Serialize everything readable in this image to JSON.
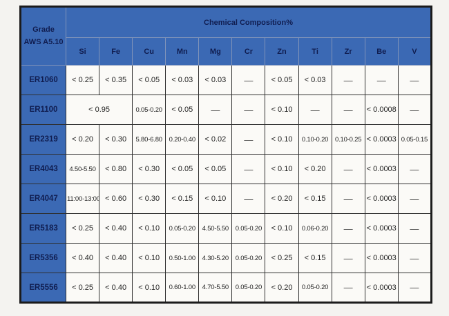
{
  "page": {
    "background_color": "#f4f3f0"
  },
  "colors": {
    "header_blue": "#3b69b4",
    "header_text_navy": "#101d50",
    "grid_line": "#2e2e2e",
    "outer_border": "#1b1b1b",
    "cell_background": "#fbfaf7"
  },
  "table": {
    "grade_header_line1": "Grade",
    "grade_header_line2": "AWS A5.10",
    "composition_header": "Chemical Composition%",
    "elements": [
      "Si",
      "Fe",
      "Cu",
      "Mn",
      "Mg",
      "Cr",
      "Zn",
      "Ti",
      "Zr",
      "Be",
      "V"
    ],
    "empty_marker": "—",
    "rows": [
      {
        "grade": "ER1060",
        "cells": [
          {
            "t": "< 0.25"
          },
          {
            "t": "< 0.35"
          },
          {
            "t": "< 0.05"
          },
          {
            "t": "< 0.03"
          },
          {
            "t": "< 0.03"
          },
          {
            "t": "—"
          },
          {
            "t": "< 0.05"
          },
          {
            "t": "< 0.03"
          },
          {
            "t": "—"
          },
          {
            "t": "—"
          },
          {
            "t": "—"
          }
        ]
      },
      {
        "grade": "ER1100",
        "cells": [
          {
            "t": "< 0.95",
            "span": 2
          },
          {
            "t": "0.05-0.20"
          },
          {
            "t": "< 0.05"
          },
          {
            "t": "—"
          },
          {
            "t": "—"
          },
          {
            "t": "< 0.10"
          },
          {
            "t": "—"
          },
          {
            "t": "—"
          },
          {
            "t": "< 0.0008"
          },
          {
            "t": "—"
          }
        ]
      },
      {
        "grade": "ER2319",
        "cells": [
          {
            "t": "< 0.20"
          },
          {
            "t": "< 0.30"
          },
          {
            "t": "5.80-6.80"
          },
          {
            "t": "0.20-0.40"
          },
          {
            "t": "< 0.02"
          },
          {
            "t": "—"
          },
          {
            "t": "< 0.10"
          },
          {
            "t": "0.10-0.20"
          },
          {
            "t": "0.10-0.25"
          },
          {
            "t": "< 0.0003"
          },
          {
            "t": "0.05-0.15"
          }
        ]
      },
      {
        "grade": "ER4043",
        "cells": [
          {
            "t": "4.50-5.50"
          },
          {
            "t": "< 0.80"
          },
          {
            "t": "< 0.30"
          },
          {
            "t": "< 0.05"
          },
          {
            "t": "< 0.05"
          },
          {
            "t": "—"
          },
          {
            "t": "< 0.10"
          },
          {
            "t": "< 0.20"
          },
          {
            "t": "—"
          },
          {
            "t": "< 0.0003"
          },
          {
            "t": "—"
          }
        ]
      },
      {
        "grade": "ER4047",
        "cells": [
          {
            "t": "11:00-13:00"
          },
          {
            "t": "< 0.60"
          },
          {
            "t": "< 0.30"
          },
          {
            "t": "< 0.15"
          },
          {
            "t": "< 0.10"
          },
          {
            "t": "—"
          },
          {
            "t": "< 0.20"
          },
          {
            "t": "< 0.15"
          },
          {
            "t": "—"
          },
          {
            "t": "< 0.0003"
          },
          {
            "t": "—"
          }
        ]
      },
      {
        "grade": "ER5183",
        "cells": [
          {
            "t": "< 0.25"
          },
          {
            "t": "< 0.40"
          },
          {
            "t": "< 0.10"
          },
          {
            "t": "0.05-0.20"
          },
          {
            "t": "4.50-5.50"
          },
          {
            "t": "0.05-0.20"
          },
          {
            "t": "< 0.10"
          },
          {
            "t": "0.06-0.20"
          },
          {
            "t": "—"
          },
          {
            "t": "< 0.0003"
          },
          {
            "t": "—"
          }
        ]
      },
      {
        "grade": "ER5356",
        "cells": [
          {
            "t": "< 0.40"
          },
          {
            "t": "< 0.40"
          },
          {
            "t": "< 0.10"
          },
          {
            "t": "0.50-1.00"
          },
          {
            "t": "4.30-5.20"
          },
          {
            "t": "0.05-0.20"
          },
          {
            "t": "< 0.25"
          },
          {
            "t": "< 0.15"
          },
          {
            "t": "—"
          },
          {
            "t": "< 0.0003"
          },
          {
            "t": "—"
          }
        ]
      },
      {
        "grade": "ER5556",
        "cells": [
          {
            "t": "< 0.25"
          },
          {
            "t": "< 0.40"
          },
          {
            "t": "< 0.10"
          },
          {
            "t": "0.60-1.00"
          },
          {
            "t": "4.70-5.50"
          },
          {
            "t": "0.05-0.20"
          },
          {
            "t": "< 0.20"
          },
          {
            "t": "0.05-0.20"
          },
          {
            "t": "—"
          },
          {
            "t": "< 0.0003"
          },
          {
            "t": "—"
          }
        ]
      }
    ]
  }
}
